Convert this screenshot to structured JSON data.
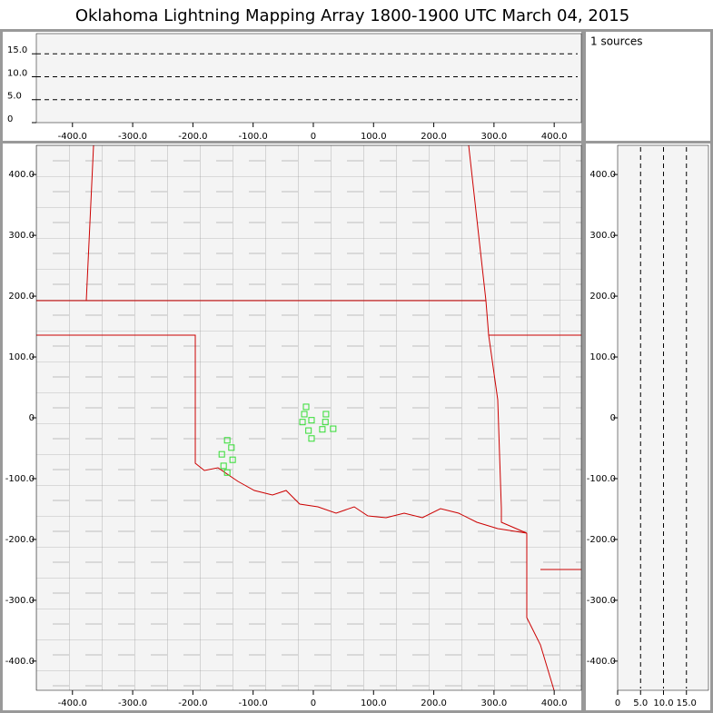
{
  "title": "Oklahoma Lightning Mapping Array   1800-1900 UTC  March 04, 2015",
  "source_count_label": "1 sources",
  "chart_data": [
    {
      "type": "scatter",
      "color": "#33dd33",
      "x": [
        -12,
        -15,
        -18,
        -3,
        21,
        20,
        15,
        33,
        -8,
        -3,
        -143,
        -136,
        -152,
        -134,
        -149,
        -143
      ],
      "y": [
        18,
        6,
        -7,
        -4,
        6,
        -7,
        -19,
        -18,
        -21,
        -34,
        -37,
        -49,
        -60,
        -69,
        -79,
        -90
      ],
      "xlim": [
        -460,
        445
      ],
      "ylim": [
        -448,
        448
      ],
      "xticks": [
        {
          "value": -400,
          "label": "-400.0"
        },
        {
          "value": -300,
          "label": "-300.0"
        },
        {
          "value": -200,
          "label": "-200.0"
        },
        {
          "value": -100,
          "label": "-100.0"
        },
        0,
        {
          "value": 100,
          "label": "100.0"
        },
        {
          "value": 200,
          "label": "200.0"
        },
        {
          "value": 300,
          "label": "300.0"
        },
        {
          "value": 400,
          "label": "400.0"
        }
      ],
      "yticks": [
        {
          "value": -400,
          "label": "-400.0"
        },
        {
          "value": -300,
          "label": "-300.0"
        },
        {
          "value": -200,
          "label": "-200.0"
        },
        {
          "value": -100,
          "label": "-100.0"
        },
        0,
        {
          "value": 100,
          "label": "100.0"
        },
        {
          "value": 200,
          "label": "200.0"
        },
        {
          "value": 300,
          "label": "300.0"
        },
        {
          "value": 400,
          "label": "400.0"
        }
      ]
    },
    {
      "type": "altitude",
      "ylim": [
        0,
        19.4
      ],
      "yticks": [
        0,
        {
          "value": 5,
          "label": "5.0"
        },
        {
          "value": 10,
          "label": "10.0"
        },
        {
          "value": 15,
          "label": "15.0"
        }
      ],
      "grid": true
    },
    {
      "type": "altitude",
      "xlim": [
        0,
        19.8
      ],
      "xticks": [
        0,
        {
          "value": 5,
          "label": "5.0"
        },
        {
          "value": 10,
          "label": "10.0"
        },
        {
          "value": 15,
          "label": "15.0"
        }
      ],
      "grid": true
    }
  ]
}
